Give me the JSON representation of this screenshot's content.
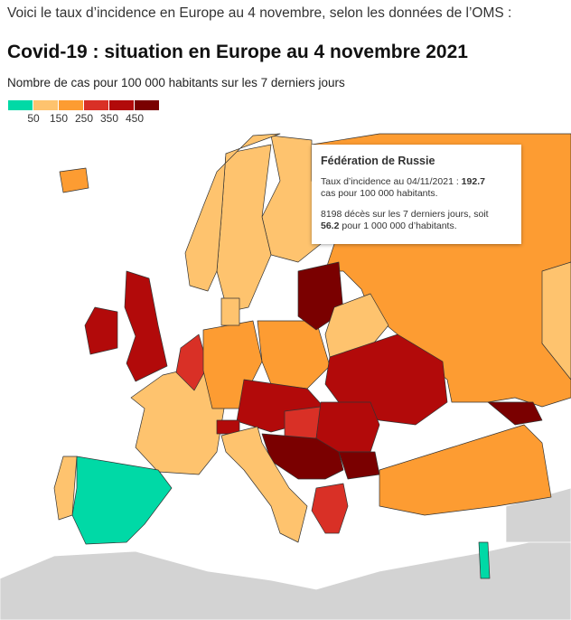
{
  "intro": "Voici le taux d’incidence en Europe au 4 novembre, selon les données de l’OMS :",
  "title": "Covid-19 : situation en Europe au 4 novembre 2021",
  "subtitle": "Nombre de cas pour 100 000 habitants sur les 7 derniers jours",
  "legend": {
    "colors": [
      "#00d9a6",
      "#fec36e",
      "#fd9c32",
      "#d93026",
      "#b20a0a",
      "#7a0000"
    ],
    "ticks": [
      "50",
      "150",
      "250",
      "350",
      "450"
    ]
  },
  "colors": {
    "no_data": "#d3d3d3",
    "sea": "#ffffff"
  },
  "tooltip": {
    "country": "Fédération de Russie",
    "line1_prefix": "Taux d’incidence au 04/11/2021 : ",
    "incidence": "192.7",
    "line1_suffix": "cas pour 100 000 habitants.",
    "line2_prefix": "8198 décès sur les 7 derniers jours, soit",
    "deaths_rate": "56.2",
    "line2_suffix": " pour 1 000 000 d’habitants."
  }
}
